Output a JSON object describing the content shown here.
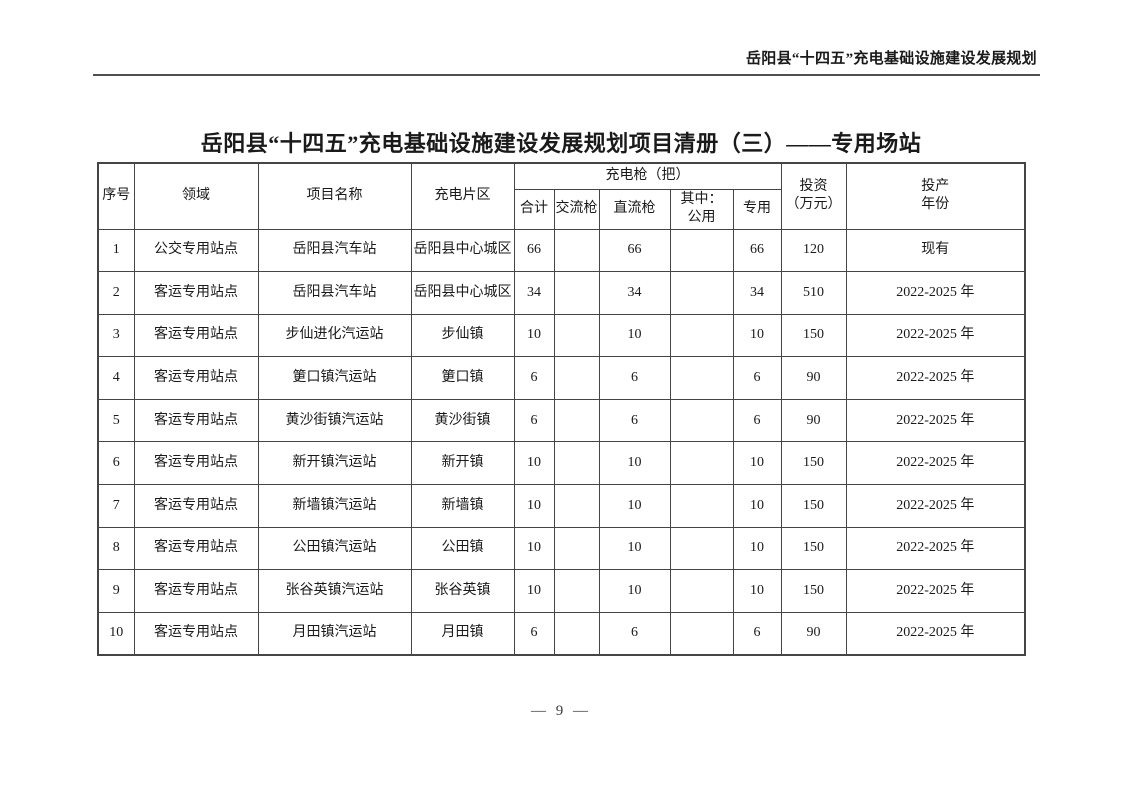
{
  "page": {
    "header_text": "岳阳县“十四五”充电基础设施建设发展规划",
    "title": "岳阳县“十四五”充电基础设施建设发展规划项目清册（三）——专用场站",
    "footer_page": "— 9 —"
  },
  "table": {
    "headers": {
      "seq": "序号",
      "field": "领域",
      "project": "项目名称",
      "district": "充电片区",
      "guns_group": "充电枪（把）",
      "total": "合计",
      "ac": "交流枪",
      "dc": "直流枪",
      "public_line1": "其中：",
      "public_line2": "公用",
      "dedicated": "专用",
      "investment_line1": "投资",
      "investment_line2": "（万元）",
      "year_line1": "投产",
      "year_line2": "年份"
    },
    "rows": [
      {
        "seq": "1",
        "field": "公交专用站点",
        "project": "岳阳县汽车站",
        "district": "岳阳县中心城区",
        "total": "66",
        "ac": "",
        "dc": "66",
        "public": "",
        "dedicated": "66",
        "investment": "120",
        "year": "现有"
      },
      {
        "seq": "2",
        "field": "客运专用站点",
        "project": "岳阳县汽车站",
        "district": "岳阳县中心城区",
        "total": "34",
        "ac": "",
        "dc": "34",
        "public": "",
        "dedicated": "34",
        "investment": "510",
        "year": "2022-2025 年"
      },
      {
        "seq": "3",
        "field": "客运专用站点",
        "project": "步仙进化汽运站",
        "district": "步仙镇",
        "total": "10",
        "ac": "",
        "dc": "10",
        "public": "",
        "dedicated": "10",
        "investment": "150",
        "year": "2022-2025 年"
      },
      {
        "seq": "4",
        "field": "客运专用站点",
        "project": "筻口镇汽运站",
        "district": "筻口镇",
        "total": "6",
        "ac": "",
        "dc": "6",
        "public": "",
        "dedicated": "6",
        "investment": "90",
        "year": "2022-2025 年"
      },
      {
        "seq": "5",
        "field": "客运专用站点",
        "project": "黄沙街镇汽运站",
        "district": "黄沙街镇",
        "total": "6",
        "ac": "",
        "dc": "6",
        "public": "",
        "dedicated": "6",
        "investment": "90",
        "year": "2022-2025 年"
      },
      {
        "seq": "6",
        "field": "客运专用站点",
        "project": "新开镇汽运站",
        "district": "新开镇",
        "total": "10",
        "ac": "",
        "dc": "10",
        "public": "",
        "dedicated": "10",
        "investment": "150",
        "year": "2022-2025 年"
      },
      {
        "seq": "7",
        "field": "客运专用站点",
        "project": "新墙镇汽运站",
        "district": "新墙镇",
        "total": "10",
        "ac": "",
        "dc": "10",
        "public": "",
        "dedicated": "10",
        "investment": "150",
        "year": "2022-2025 年"
      },
      {
        "seq": "8",
        "field": "客运专用站点",
        "project": "公田镇汽运站",
        "district": "公田镇",
        "total": "10",
        "ac": "",
        "dc": "10",
        "public": "",
        "dedicated": "10",
        "investment": "150",
        "year": "2022-2025 年"
      },
      {
        "seq": "9",
        "field": "客运专用站点",
        "project": "张谷英镇汽运站",
        "district": "张谷英镇",
        "total": "10",
        "ac": "",
        "dc": "10",
        "public": "",
        "dedicated": "10",
        "investment": "150",
        "year": "2022-2025 年"
      },
      {
        "seq": "10",
        "field": "客运专用站点",
        "project": "月田镇汽运站",
        "district": "月田镇",
        "total": "6",
        "ac": "",
        "dc": "6",
        "public": "",
        "dedicated": "6",
        "investment": "90",
        "year": "2022-2025 年"
      }
    ]
  }
}
